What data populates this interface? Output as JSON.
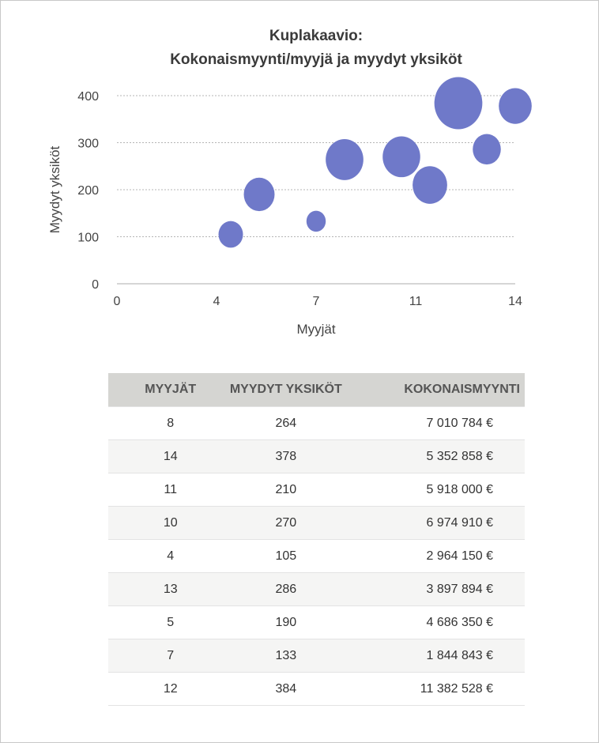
{
  "chart_data": {
    "type": "bubble",
    "title": [
      "Kuplakaavio:",
      "Kokonaismyynti/myyjä ja myydyt yksiköt"
    ],
    "xlabel": "Myyjät",
    "ylabel": "Myydyt yksiköt",
    "xlim": [
      0,
      14
    ],
    "ylim": [
      0,
      400
    ],
    "x_ticks": [
      0,
      3.5,
      7,
      10.5,
      14
    ],
    "x_tick_labels": [
      "0",
      "4",
      "7",
      "11",
      "14"
    ],
    "y_ticks": [
      0,
      100,
      200,
      300,
      400
    ],
    "y_tick_labels": [
      "0",
      "100",
      "200",
      "300",
      "400"
    ],
    "grid": "horizontal dotted",
    "bubble_color": "#6f79c9",
    "points": [
      {
        "x": 8,
        "y": 264,
        "size": 7010784
      },
      {
        "x": 14,
        "y": 378,
        "size": 5352858
      },
      {
        "x": 11,
        "y": 210,
        "size": 5918000
      },
      {
        "x": 10,
        "y": 270,
        "size": 6974910
      },
      {
        "x": 4,
        "y": 105,
        "size": 2964150
      },
      {
        "x": 13,
        "y": 286,
        "size": 3897894
      },
      {
        "x": 5,
        "y": 190,
        "size": 4686350
      },
      {
        "x": 7,
        "y": 133,
        "size": 1844843
      },
      {
        "x": 12,
        "y": 384,
        "size": 11382528
      }
    ]
  },
  "table": {
    "headers": [
      "MYYJÄT",
      "MYYDYT YKSIKÖT",
      "KOKONAISMYYNTI"
    ],
    "rows": [
      [
        "8",
        "264",
        "7 010 784 €"
      ],
      [
        "14",
        "378",
        "5 352 858 €"
      ],
      [
        "11",
        "210",
        "5 918 000 €"
      ],
      [
        "10",
        "270",
        "6 974 910 €"
      ],
      [
        "4",
        "105",
        "2 964 150 €"
      ],
      [
        "13",
        "286",
        "3 897 894 €"
      ],
      [
        "5",
        "190",
        "4 686 350 €"
      ],
      [
        "7",
        "133",
        "1 844 843 €"
      ],
      [
        "12",
        "384",
        "11 382 528 €"
      ]
    ]
  }
}
